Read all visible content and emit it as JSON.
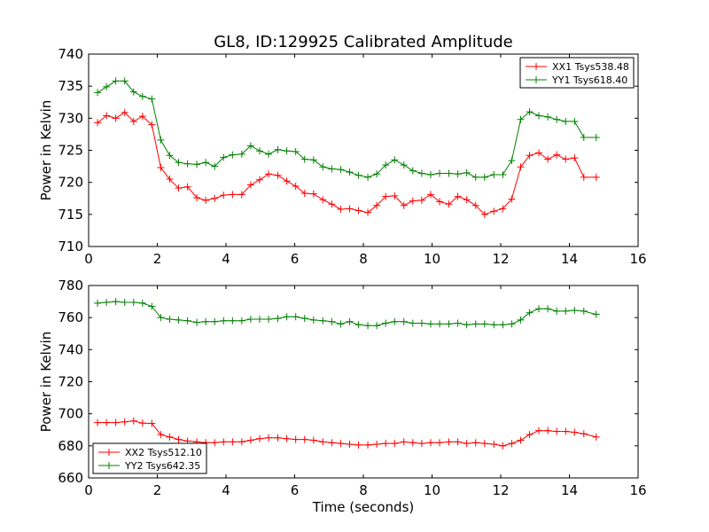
{
  "chart_data": [
    {
      "type": "line",
      "title": "GL8, ID:129925 Calibrated Amplitude",
      "xlabel": "",
      "ylabel": "Power in Kelvin",
      "xlim": [
        0,
        16
      ],
      "ylim": [
        710,
        740
      ],
      "xticks": [
        0,
        2,
        4,
        6,
        8,
        10,
        12,
        14,
        16
      ],
      "yticks": [
        710,
        715,
        720,
        725,
        730,
        735,
        740
      ],
      "legend_position": "top-right",
      "marker": "plus",
      "x": [
        0.26,
        0.52,
        0.79,
        1.05,
        1.31,
        1.57,
        1.84,
        2.1,
        2.36,
        2.62,
        2.88,
        3.15,
        3.41,
        3.67,
        3.93,
        4.19,
        4.46,
        4.72,
        4.98,
        5.24,
        5.51,
        5.77,
        6.03,
        6.29,
        6.55,
        6.82,
        7.08,
        7.34,
        7.6,
        7.86,
        8.13,
        8.39,
        8.65,
        8.91,
        9.18,
        9.44,
        9.7,
        9.96,
        10.22,
        10.49,
        10.75,
        11.01,
        11.27,
        11.53,
        11.8,
        12.06,
        12.32,
        12.58,
        12.84,
        13.11,
        13.37,
        13.63,
        13.89,
        14.15,
        14.42,
        14.78
      ],
      "series": [
        {
          "name": "XX1 Tsys538.48",
          "color": "#ff0000",
          "values": [
            729.3,
            730.4,
            730.0,
            730.9,
            729.5,
            730.3,
            729.0,
            722.3,
            720.5,
            719.1,
            719.3,
            717.6,
            717.2,
            717.5,
            718.0,
            718.1,
            718.1,
            719.6,
            720.4,
            721.3,
            721.1,
            720.2,
            719.4,
            718.3,
            718.2,
            717.3,
            716.6,
            715.8,
            715.9,
            715.6,
            715.3,
            716.4,
            717.8,
            717.9,
            716.4,
            717.1,
            717.2,
            718.1,
            717.0,
            716.6,
            717.8,
            717.3,
            716.4,
            715.0,
            715.5,
            715.9,
            717.4,
            722.4,
            724.2,
            724.6,
            723.6,
            724.3,
            723.6,
            723.8,
            720.8,
            720.8
          ]
        },
        {
          "name": "YY1 Tsys618.40",
          "color": "#008000",
          "values": [
            734.0,
            734.9,
            735.8,
            735.8,
            734.1,
            733.4,
            733.0,
            726.6,
            724.2,
            723.1,
            722.9,
            722.8,
            723.1,
            722.5,
            723.9,
            724.3,
            724.4,
            725.7,
            724.9,
            724.4,
            725.1,
            724.9,
            724.8,
            723.6,
            723.5,
            722.4,
            722.1,
            722.0,
            721.6,
            721.1,
            720.8,
            721.3,
            722.7,
            723.5,
            722.7,
            721.8,
            721.4,
            721.2,
            721.4,
            721.4,
            721.3,
            721.5,
            720.8,
            720.8,
            721.2,
            721.2,
            723.4,
            729.8,
            731.0,
            730.4,
            730.2,
            729.8,
            729.5,
            729.5,
            727.0,
            727.0
          ]
        }
      ]
    },
    {
      "type": "line",
      "title": "",
      "xlabel": "Time (seconds)",
      "ylabel": "Power in Kelvin",
      "xlim": [
        0,
        16
      ],
      "ylim": [
        660,
        780
      ],
      "xticks": [
        0,
        2,
        4,
        6,
        8,
        10,
        12,
        14,
        16
      ],
      "yticks": [
        660,
        680,
        700,
        720,
        740,
        760,
        780
      ],
      "legend_position": "bottom-left",
      "marker": "plus",
      "x": [
        0.26,
        0.52,
        0.79,
        1.05,
        1.31,
        1.57,
        1.84,
        2.1,
        2.36,
        2.62,
        2.88,
        3.15,
        3.41,
        3.67,
        3.93,
        4.19,
        4.46,
        4.72,
        4.98,
        5.24,
        5.51,
        5.77,
        6.03,
        6.29,
        6.55,
        6.82,
        7.08,
        7.34,
        7.6,
        7.86,
        8.13,
        8.39,
        8.65,
        8.91,
        9.18,
        9.44,
        9.7,
        9.96,
        10.22,
        10.49,
        10.75,
        11.01,
        11.27,
        11.53,
        11.8,
        12.06,
        12.32,
        12.58,
        12.84,
        13.11,
        13.37,
        13.63,
        13.89,
        14.15,
        14.42,
        14.78
      ],
      "series": [
        {
          "name": "XX2 Tsys512.10",
          "color": "#ff0000",
          "values": [
            694.5,
            694.5,
            694.5,
            695.0,
            695.5,
            694.2,
            694.0,
            687.0,
            685.5,
            684.0,
            683.0,
            682.5,
            682.0,
            682.0,
            682.5,
            682.5,
            682.5,
            683.5,
            684.5,
            685.0,
            685.0,
            684.5,
            684.0,
            684.0,
            683.5,
            682.5,
            682.0,
            681.5,
            681.0,
            680.5,
            680.5,
            681.0,
            681.5,
            681.5,
            682.5,
            682.0,
            681.5,
            682.0,
            682.0,
            682.5,
            682.5,
            681.5,
            682.0,
            681.5,
            681.0,
            680.0,
            681.5,
            683.5,
            687.0,
            689.5,
            689.5,
            689.0,
            689.0,
            688.5,
            687.5,
            685.5
          ]
        },
        {
          "name": "YY2 Tsys642.35",
          "color": "#008000",
          "values": [
            769.0,
            769.5,
            770.0,
            769.5,
            769.5,
            769.0,
            767.0,
            760.0,
            759.0,
            758.5,
            758.0,
            757.0,
            757.5,
            757.5,
            758.0,
            758.0,
            758.0,
            759.0,
            759.0,
            759.0,
            759.5,
            760.5,
            760.5,
            759.5,
            758.5,
            758.0,
            757.5,
            756.0,
            757.5,
            755.5,
            755.0,
            755.0,
            756.5,
            757.5,
            757.5,
            756.5,
            756.5,
            756.0,
            756.0,
            756.0,
            756.5,
            755.5,
            756.0,
            756.0,
            755.5,
            755.5,
            756.0,
            758.5,
            763.0,
            765.5,
            765.5,
            764.0,
            764.0,
            764.5,
            764.0,
            762.0
          ]
        }
      ]
    }
  ]
}
